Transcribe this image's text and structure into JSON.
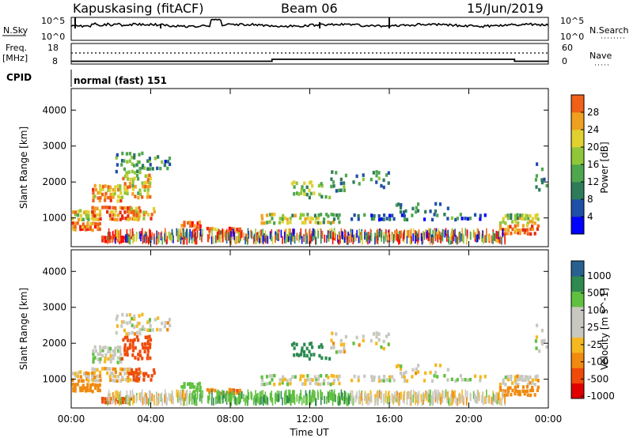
{
  "header": {
    "station": "Kapuskasing (fitACF)",
    "beam": "Beam 06",
    "date": "15/Jun/2019"
  },
  "strip_labels": {
    "nsky": "N.Sky",
    "nsearch": "N.Search",
    "freq_line1": "Freq.",
    "freq_line2": "[MHz]",
    "nave": "Nave",
    "cpid": "CPID",
    "cpid_value": "normal (fast) 151"
  },
  "noise_strip": {
    "left_ticks": [
      "10^5",
      "10^0"
    ],
    "right_ticks": [
      "10^5",
      "10^0"
    ]
  },
  "freq_strip": {
    "left_ticks": [
      "18",
      "8"
    ],
    "right_ticks": [
      "60",
      "0"
    ]
  },
  "colors": {
    "power_scale": [
      "#0000ff",
      "#1f4fa6",
      "#2e7b5a",
      "#4ea64e",
      "#90c63a",
      "#e0d030",
      "#f0a020",
      "#f06018",
      "#e82a10",
      "#ff0000"
    ],
    "velocity_scale": [
      "#e00000",
      "#f04a0a",
      "#f08a10",
      "#f5b820",
      "#c8c8c0",
      "#c8c8c0",
      "#60c040",
      "#2e8a50",
      "#2a6090",
      "#1f3fb0"
    ]
  },
  "chart_data": [
    {
      "type": "heatmap",
      "title": "",
      "quantity": "Power",
      "xlabel": "",
      "ylabel": "Slant Range [km]",
      "xlim": [
        "00:00",
        "00:00"
      ],
      "x_ticks": [
        "00:00",
        "04:00",
        "08:00",
        "12:00",
        "16:00",
        "20:00",
        "00:00"
      ],
      "ylim": [
        200,
        4600
      ],
      "y_ticks": [
        1000,
        2000,
        3000,
        4000
      ],
      "colorbar": {
        "label": "Power [dB]",
        "ticks": [
          "4",
          "8",
          "12",
          "16",
          "20",
          "24",
          "28"
        ],
        "range": [
          0,
          32
        ]
      }
    },
    {
      "type": "heatmap",
      "title": "",
      "quantity": "Velocity",
      "xlabel": "Time UT",
      "ylabel": "Slant Range [km]",
      "xlim": [
        "00:00",
        "00:00"
      ],
      "x_ticks": [
        "00:00",
        "04:00",
        "08:00",
        "12:00",
        "16:00",
        "20:00",
        "00:00"
      ],
      "ylim": [
        200,
        4600
      ],
      "y_ticks": [
        1000,
        2000,
        3000,
        4000
      ],
      "colorbar": {
        "label": "Velocity [m s^-1]",
        "ticks": [
          "1000",
          "500",
          "100",
          "25",
          "-25",
          "-100",
          "-500",
          "-1000"
        ]
      }
    }
  ]
}
